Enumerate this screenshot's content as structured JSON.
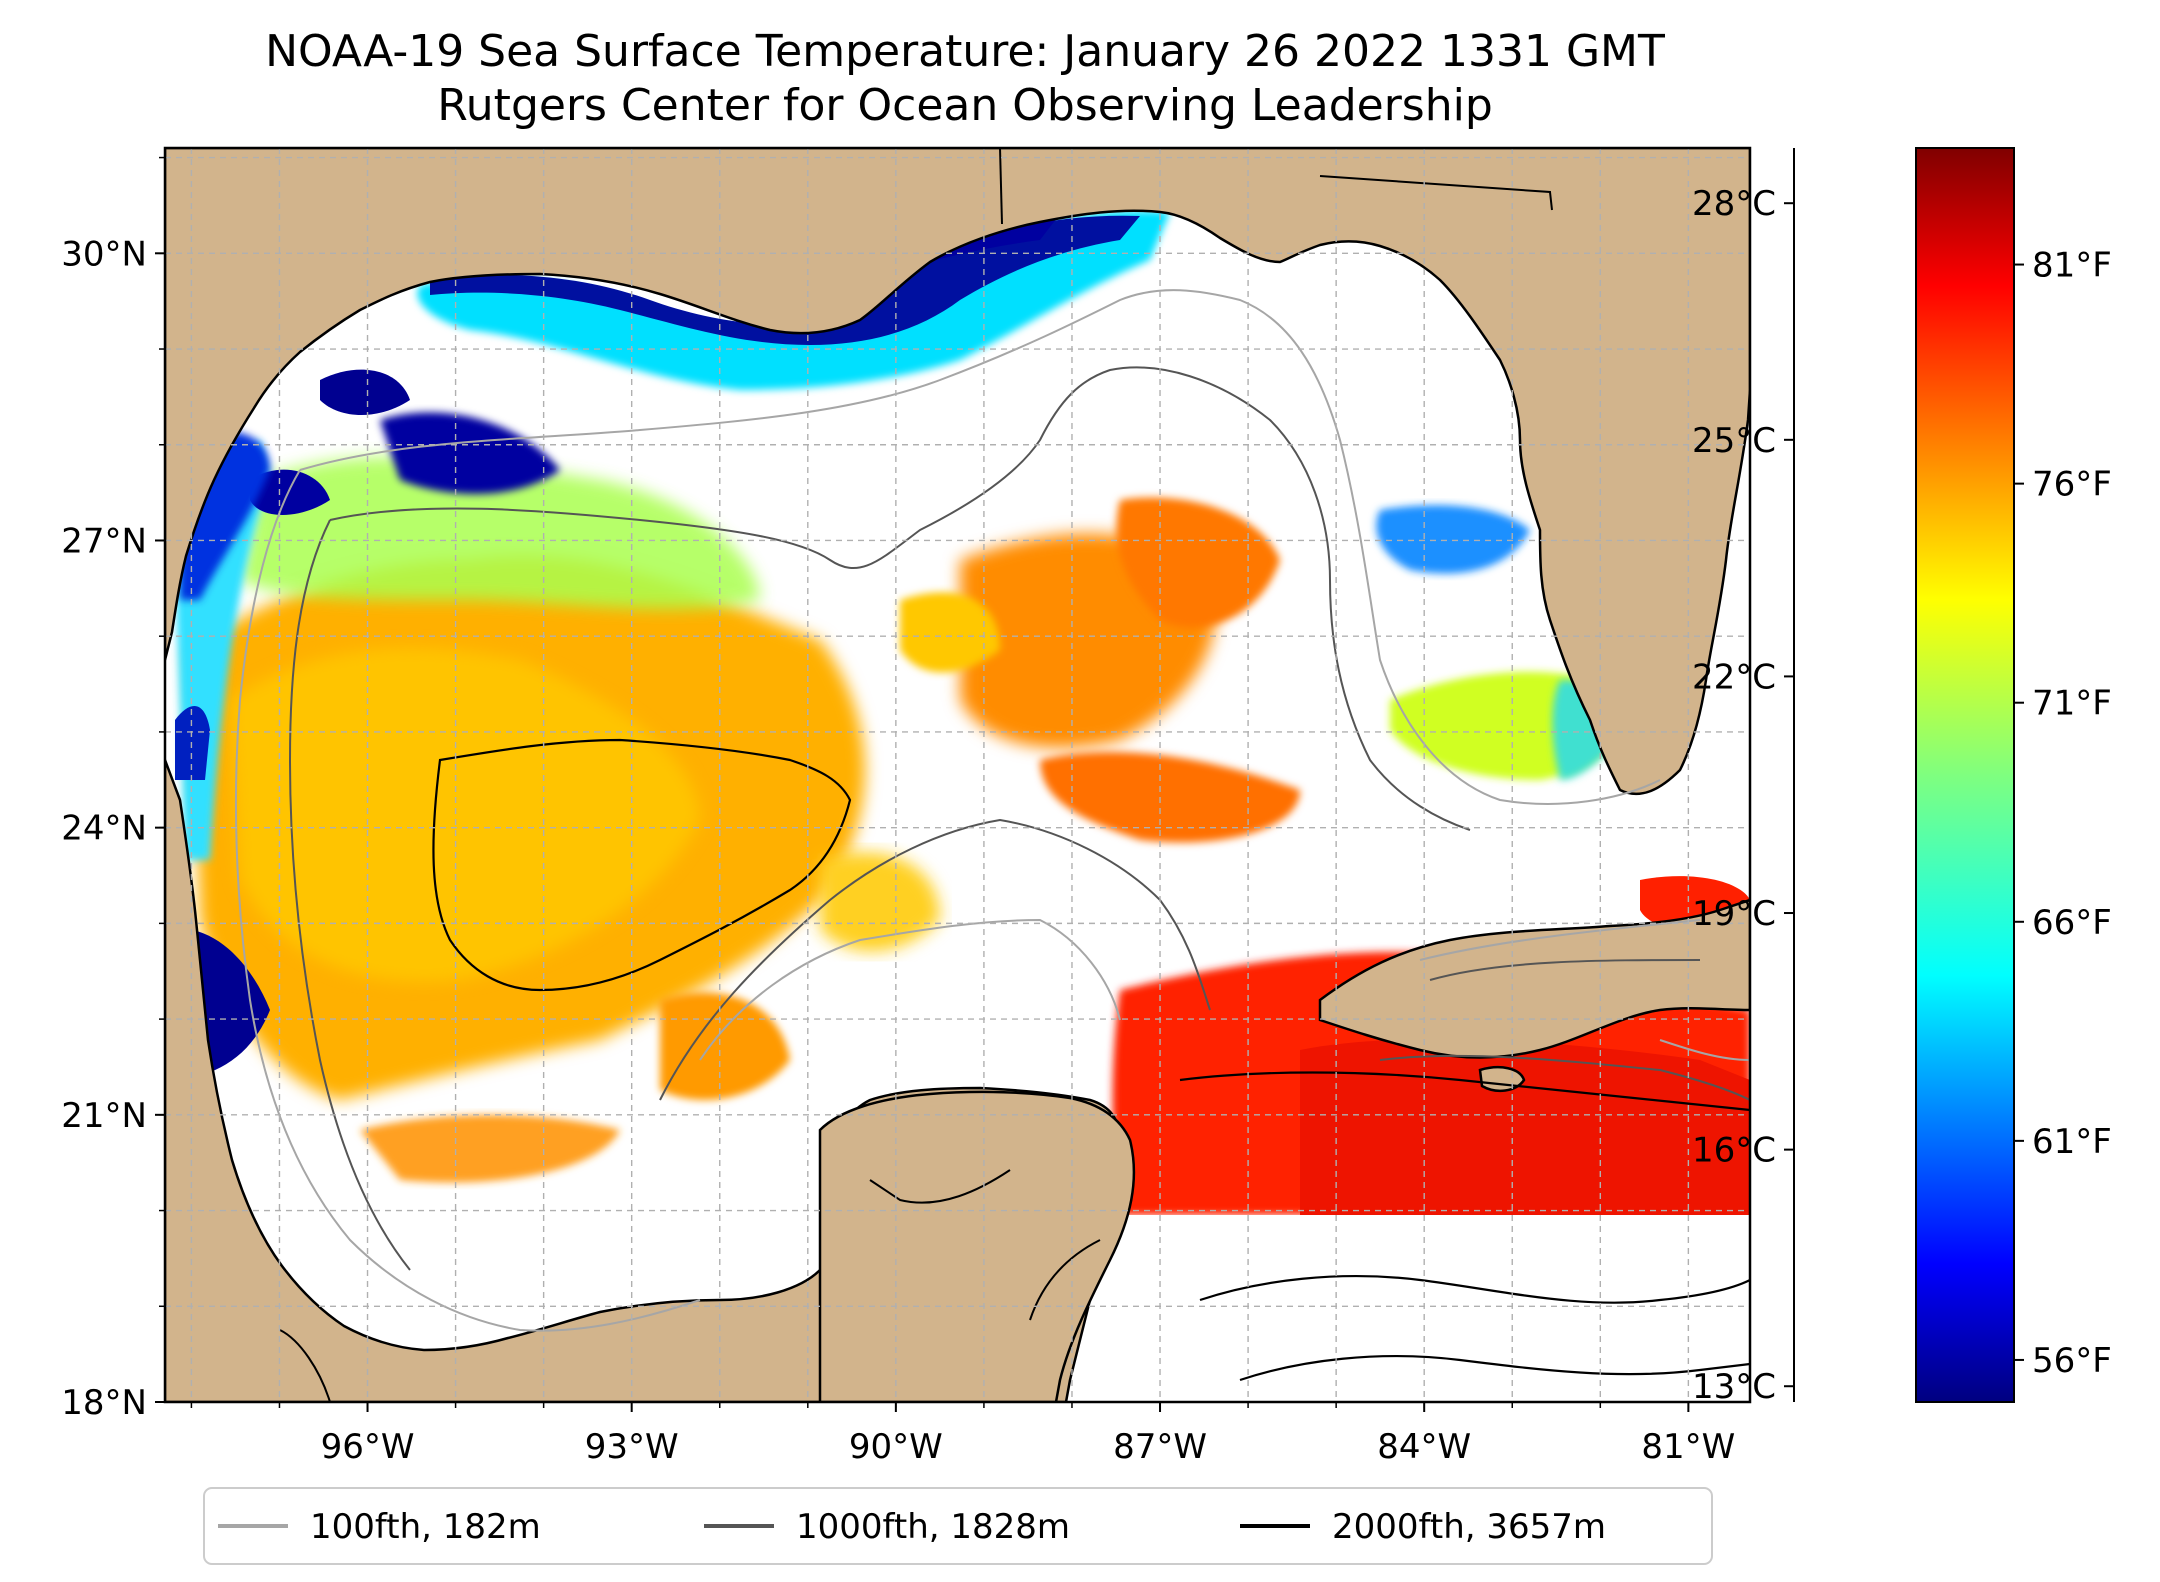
{
  "title": "NOAA-19 Sea Surface Temperature: January 26 2022 1331 GMT",
  "subtitle": "Rutgers Center for Ocean Observing Leadership",
  "map": {
    "lat_labels": [
      "30°N",
      "27°N",
      "24°N",
      "21°N",
      "18°N"
    ],
    "lat_values": [
      30,
      27,
      24,
      21,
      18
    ],
    "lon_labels": [
      "96°W",
      "93°W",
      "90°W",
      "87°W",
      "84°W",
      "81°W"
    ],
    "lon_values": [
      -96,
      -93,
      -90,
      -87,
      -84,
      -81
    ],
    "extent": {
      "lon_min": -98.3,
      "lon_max": -80.3,
      "lat_min": 18,
      "lat_max": 31.1
    },
    "land_color": "#d2b48c",
    "gridlines": "dashed"
  },
  "colorbar": {
    "celsius_labels": [
      "28°C",
      "25°C",
      "22°C",
      "19°C",
      "16°C",
      "13°C"
    ],
    "celsius_values": [
      28,
      25,
      22,
      19,
      16,
      13
    ],
    "fahrenheit_labels": [
      "81°F",
      "76°F",
      "71°F",
      "66°F",
      "61°F",
      "56°F"
    ],
    "fahrenheit_values": [
      81,
      76,
      71,
      66,
      61,
      56
    ],
    "range_c": [
      12.8,
      28.7
    ],
    "colormap": "jet"
  },
  "legend": [
    {
      "label": "100fth, 182m",
      "color": "#a6a6a6"
    },
    {
      "label": "1000fth, 1828m",
      "color": "#555555"
    },
    {
      "label": "2000fth, 3657m",
      "color": "#000000"
    }
  ]
}
